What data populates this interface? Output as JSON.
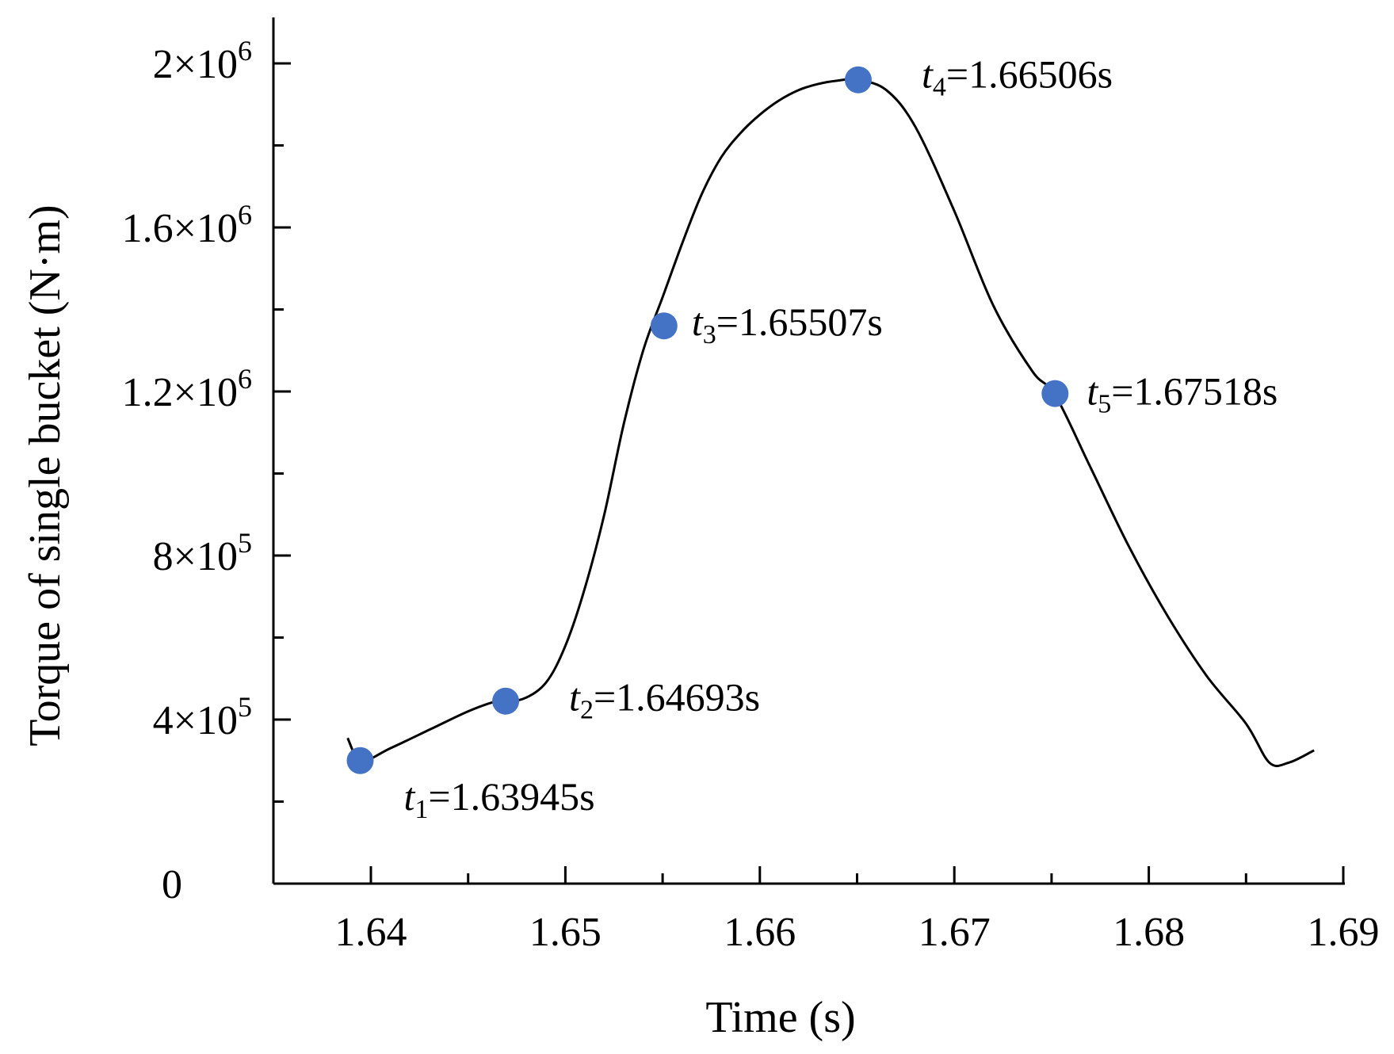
{
  "chart_data": {
    "type": "line",
    "title": "",
    "xlabel": "Time (s)",
    "ylabel": "Torque of single bucket (N·m)",
    "xlim": [
      1.636,
      1.6905
    ],
    "ylim": [
      0,
      2100000
    ],
    "x_ticks": [
      {
        "value": 1.64,
        "label": "1.64"
      },
      {
        "value": 1.65,
        "label": "1.65"
      },
      {
        "value": 1.66,
        "label": "1.66"
      },
      {
        "value": 1.67,
        "label": "1.67"
      },
      {
        "value": 1.68,
        "label": "1.68"
      },
      {
        "value": 1.69,
        "label": "1.69"
      }
    ],
    "x_minor": [
      1.645,
      1.655,
      1.665,
      1.675,
      1.685
    ],
    "y_ticks": [
      {
        "value": 0,
        "mant": "0",
        "exp": ""
      },
      {
        "value": 400000,
        "mant": "4×10",
        "exp": "5"
      },
      {
        "value": 800000,
        "mant": "8×10",
        "exp": "5"
      },
      {
        "value": 1200000,
        "mant": "1.2×10",
        "exp": "6"
      },
      {
        "value": 1600000,
        "mant": "1.6×10",
        "exp": "6"
      },
      {
        "value": 2000000,
        "mant": "2×10",
        "exp": "6"
      }
    ],
    "y_minor": [
      200000,
      600000,
      1000000,
      1400000,
      1800000
    ],
    "series": [
      {
        "name": "Torque",
        "x": [
          1.6388,
          1.6395,
          1.641,
          1.643,
          1.645,
          1.6465,
          1.6478,
          1.649,
          1.65,
          1.651,
          1.652,
          1.653,
          1.654,
          1.655,
          1.656,
          1.657,
          1.658,
          1.659,
          1.66,
          1.661,
          1.662,
          1.663,
          1.664,
          1.665,
          1.6665,
          1.668,
          1.67,
          1.672,
          1.674,
          1.6752,
          1.677,
          1.679,
          1.681,
          1.683,
          1.685,
          1.6862,
          1.6872,
          1.6885
        ],
        "values": [
          355000,
          300000,
          330000,
          375000,
          420000,
          445000,
          450000,
          490000,
          580000,
          720000,
          900000,
          1120000,
          1300000,
          1430000,
          1560000,
          1680000,
          1770000,
          1830000,
          1875000,
          1910000,
          1935000,
          1950000,
          1958000,
          1960000,
          1935000,
          1845000,
          1640000,
          1410000,
          1250000,
          1190000,
          1015000,
          820000,
          650000,
          505000,
          390000,
          295000,
          295000,
          325000
        ]
      }
    ],
    "points": [
      {
        "x": 1.63945,
        "y": 300000,
        "label_t": "t",
        "label_sub": "1",
        "label_val": "=1.63945s"
      },
      {
        "x": 1.64693,
        "y": 445000,
        "label_t": "t",
        "label_sub": "2",
        "label_val": "=1.64693s"
      },
      {
        "x": 1.65507,
        "y": 1360000,
        "label_t": "t",
        "label_sub": "3",
        "label_val": "=1.65507s"
      },
      {
        "x": 1.66506,
        "y": 1960000,
        "label_t": "t",
        "label_sub": "4",
        "label_val": "=1.66506s"
      },
      {
        "x": 1.67518,
        "y": 1195000,
        "label_t": "t",
        "label_sub": "5",
        "label_val": "=1.67518s"
      }
    ]
  },
  "colors": {
    "point": "#4472c4",
    "line": "#000000"
  }
}
